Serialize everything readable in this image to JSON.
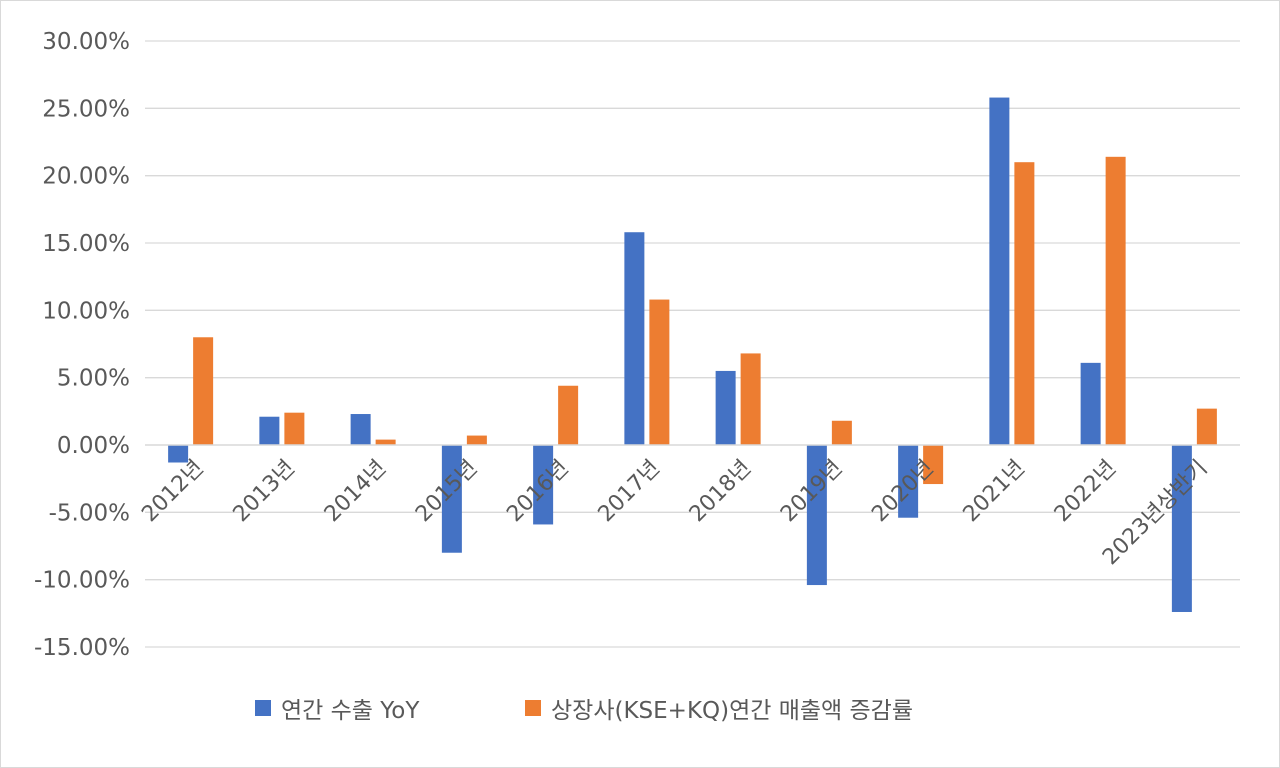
{
  "chart_data": {
    "type": "bar",
    "categories": [
      "2012년",
      "2013년",
      "2014년",
      "2015년",
      "2016년",
      "2017년",
      "2018년",
      "2019년",
      "2020년",
      "2021년",
      "2022년",
      "2023년상반기"
    ],
    "series": [
      {
        "name": "연간 수출 YoY",
        "color": "#4472C4",
        "values": [
          -1.3,
          2.1,
          2.3,
          -8.0,
          -5.9,
          15.8,
          5.5,
          -10.4,
          -5.4,
          25.8,
          6.1,
          -12.4
        ]
      },
      {
        "name": "상장사(KSE+KQ)연간 매출액 증감률",
        "color": "#ED7D31",
        "values": [
          8.0,
          2.4,
          0.4,
          0.7,
          4.4,
          10.8,
          6.8,
          1.8,
          -2.9,
          21.0,
          21.4,
          2.7
        ]
      }
    ],
    "ylim": [
      -15,
      30
    ],
    "yticks": [
      "30.00%",
      "25.00%",
      "20.00%",
      "15.00%",
      "10.00%",
      "5.00%",
      "0.00%",
      "-5.00%",
      "-10.00%",
      "-15.00%"
    ],
    "ytick_values": [
      30,
      25,
      20,
      15,
      10,
      5,
      0,
      -5,
      -10,
      -15
    ],
    "grid": true,
    "legend_position": "bottom",
    "title": "",
    "xlabel": "",
    "ylabel": ""
  }
}
